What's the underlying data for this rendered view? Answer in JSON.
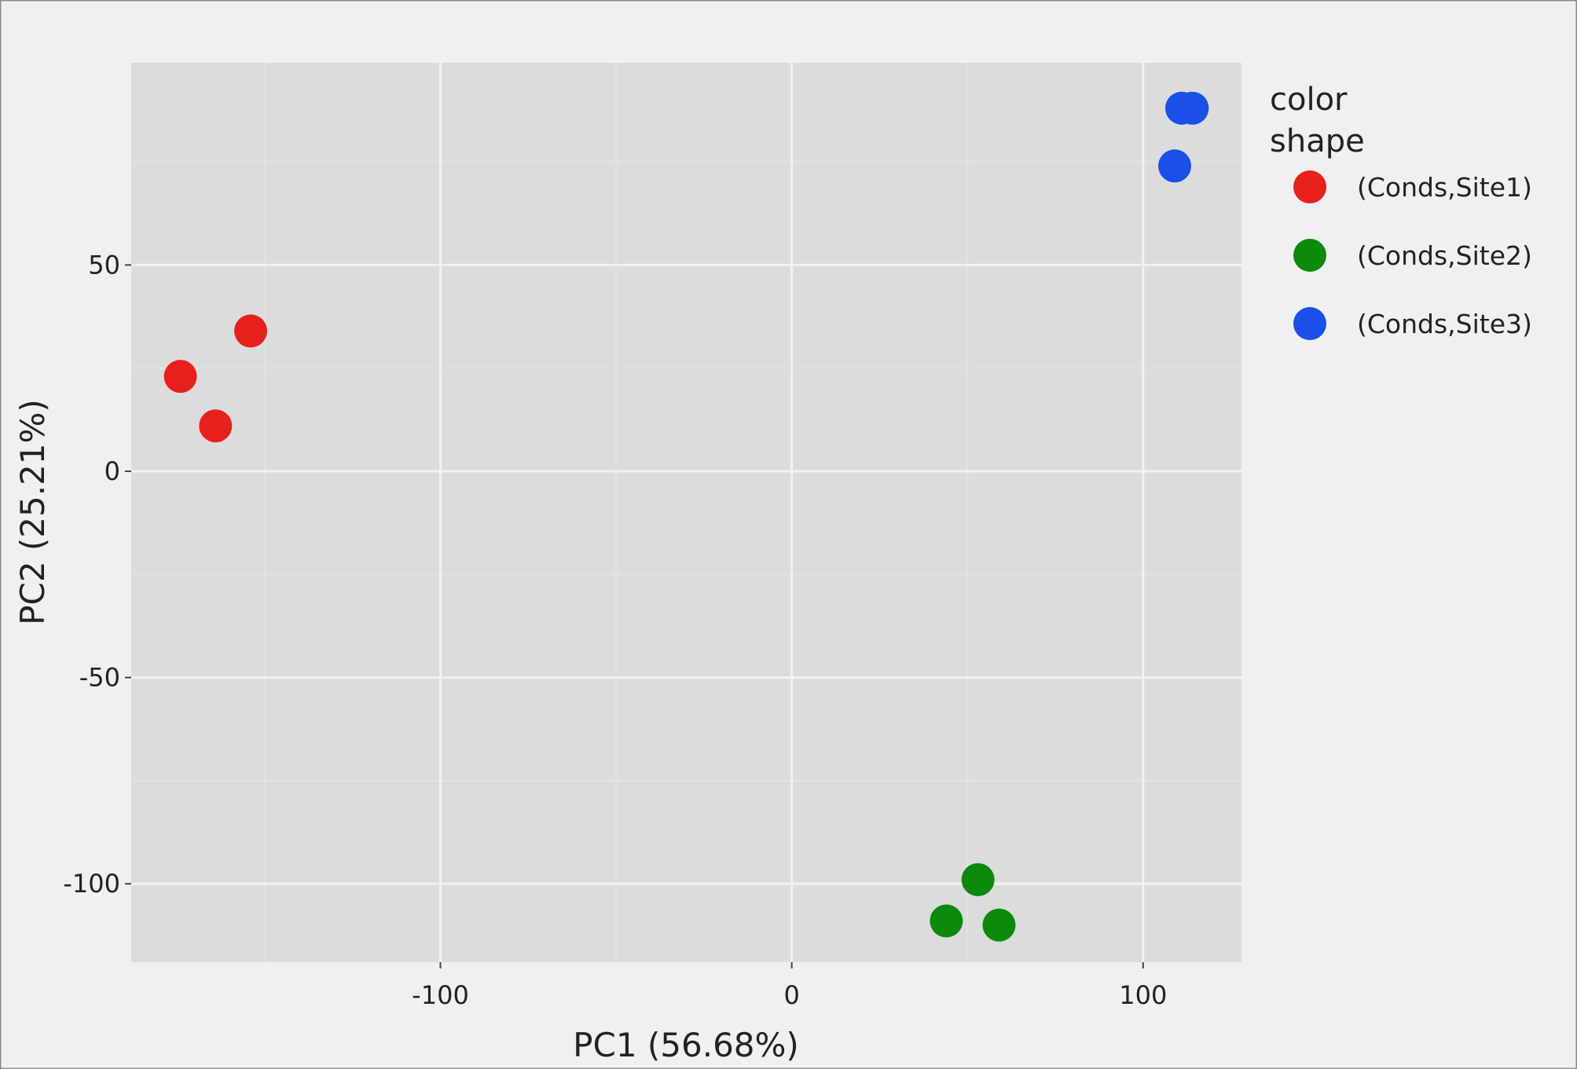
{
  "chart_data": {
    "type": "scatter",
    "xlabel": "PC1 (56.68%)",
    "ylabel": "PC2 (25.21%)",
    "xlim": [
      -188,
      128
    ],
    "ylim": [
      -119,
      99
    ],
    "x_ticks": [
      -100,
      0,
      100
    ],
    "y_ticks": [
      50,
      0,
      -50,
      -100
    ],
    "x_tick_labels": [
      "-100",
      "0",
      "100"
    ],
    "y_tick_labels": [
      "50",
      "0",
      "-50",
      "-100"
    ],
    "grid": true,
    "legend": {
      "placement": "right",
      "titles": [
        "color",
        "shape"
      ]
    },
    "series": [
      {
        "name": "(Conds,Site1)",
        "color": "#e8201c",
        "points": [
          [
            -174,
            23
          ],
          [
            -164,
            11
          ],
          [
            -154,
            34
          ]
        ]
      },
      {
        "name": "(Conds,Site2)",
        "color": "#0b8a0b",
        "points": [
          [
            53,
            -99
          ],
          [
            44,
            -109
          ],
          [
            59,
            -110
          ]
        ]
      },
      {
        "name": "(Conds,Site3)",
        "color": "#1a4fe8",
        "points": [
          [
            111,
            88
          ],
          [
            114,
            88
          ],
          [
            109,
            74
          ]
        ]
      }
    ]
  }
}
